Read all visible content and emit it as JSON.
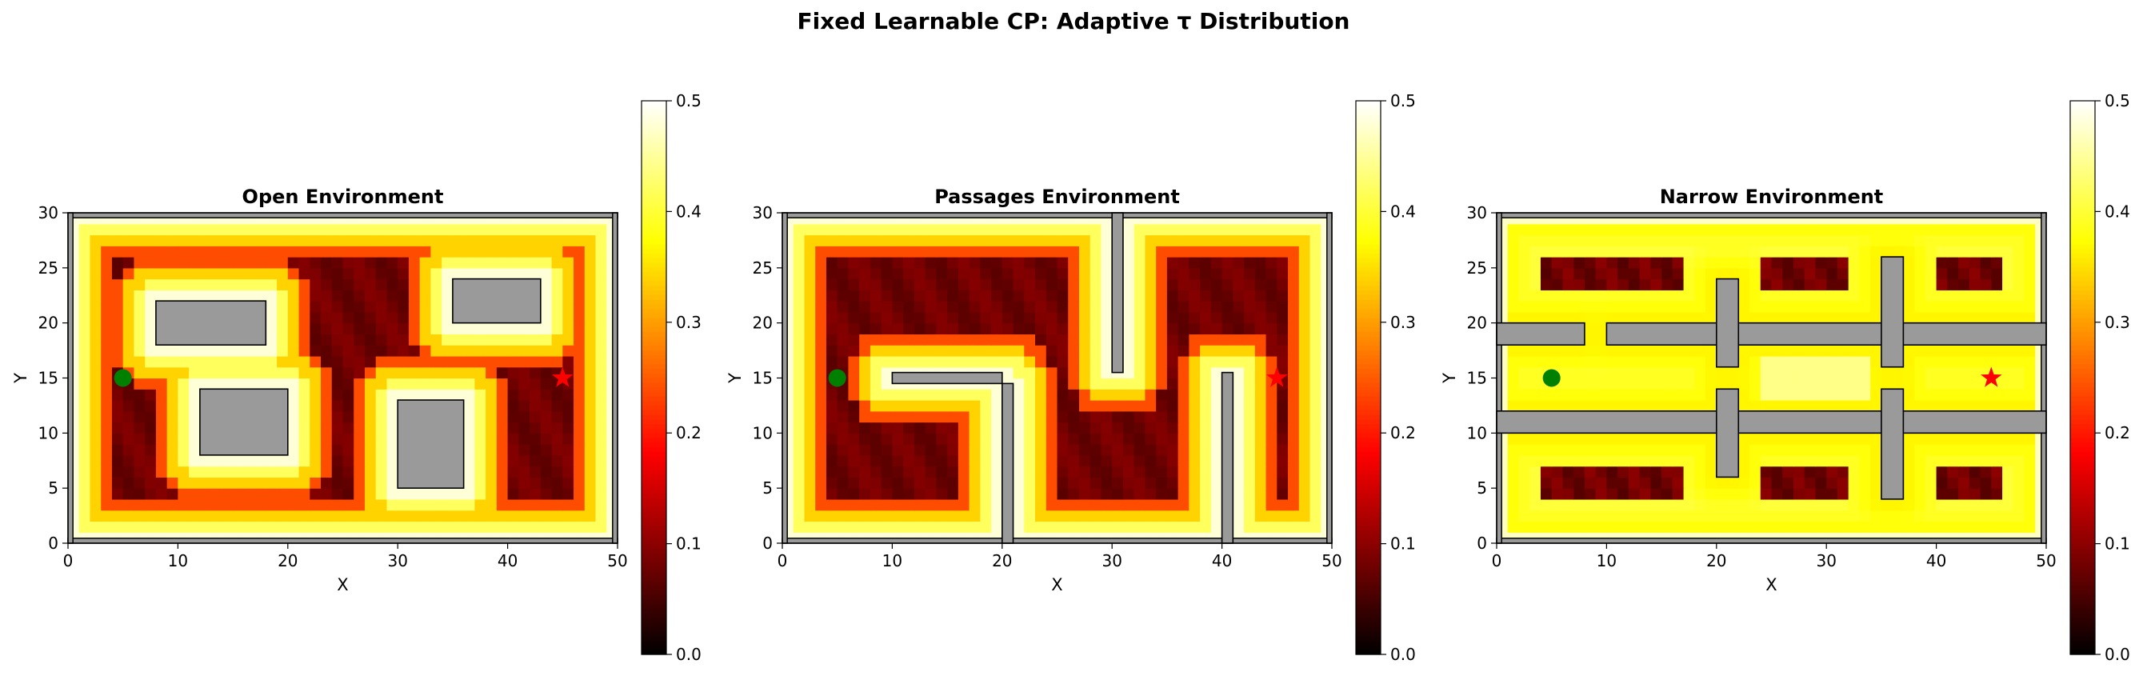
{
  "figure": {
    "suptitle": "Fixed Learnable CP: Adaptive τ Distribution"
  },
  "chart_data": [
    {
      "type": "heatmap",
      "title": "Open Environment",
      "xlabel": "X",
      "ylabel": "Y",
      "xlim": [
        0,
        50
      ],
      "ylim": [
        0,
        30
      ],
      "xticks": [
        0,
        10,
        20,
        30,
        40,
        50
      ],
      "yticks": [
        0,
        5,
        10,
        15,
        20,
        25,
        30
      ],
      "colormap": "hot",
      "colorbar": {
        "range": [
          0.0,
          0.5
        ],
        "ticks": [
          "0.0",
          "0.1",
          "0.2",
          "0.3",
          "0.4",
          "0.5"
        ]
      },
      "value_range": [
        0.0,
        0.5
      ],
      "cell_size": 1,
      "start": {
        "x": 5,
        "y": 15,
        "color": "#008000",
        "marker": "circle"
      },
      "goal": {
        "x": 45,
        "y": 15,
        "color": "#ff0000",
        "marker": "star"
      },
      "obstacles": [
        {
          "x": 8,
          "y": 18,
          "w": 10,
          "h": 4
        },
        {
          "x": 12,
          "y": 8,
          "w": 8,
          "h": 6
        },
        {
          "x": 30,
          "y": 5,
          "w": 6,
          "h": 8
        },
        {
          "x": 35,
          "y": 20,
          "w": 8,
          "h": 4
        }
      ],
      "walls": true,
      "pattern": "obstacle-distance"
    },
    {
      "type": "heatmap",
      "title": "Passages Environment",
      "xlabel": "X",
      "ylabel": "Y",
      "xlim": [
        0,
        50
      ],
      "ylim": [
        0,
        30
      ],
      "xticks": [
        0,
        10,
        20,
        30,
        40,
        50
      ],
      "yticks": [
        0,
        5,
        10,
        15,
        20,
        25,
        30
      ],
      "colormap": "hot",
      "colorbar": {
        "range": [
          0.0,
          0.5
        ],
        "ticks": [
          "0.0",
          "0.1",
          "0.2",
          "0.3",
          "0.4",
          "0.5"
        ]
      },
      "value_range": [
        0.0,
        0.5
      ],
      "cell_size": 1,
      "start": {
        "x": 5,
        "y": 15,
        "color": "#008000",
        "marker": "circle"
      },
      "goal": {
        "x": 45,
        "y": 15,
        "color": "#ff0000",
        "marker": "star"
      },
      "obstacles": [
        {
          "x": 10,
          "y": 14.5,
          "w": 10,
          "h": 1
        },
        {
          "x": 20,
          "y": 0,
          "w": 1,
          "h": 14.5
        },
        {
          "x": 30,
          "y": 15.5,
          "w": 1,
          "h": 14.5
        },
        {
          "x": 40,
          "y": 0,
          "w": 1,
          "h": 15.5
        }
      ],
      "walls": true,
      "pattern": "obstacle-distance"
    },
    {
      "type": "heatmap",
      "title": "Narrow Environment",
      "xlabel": "X",
      "ylabel": "Y",
      "xlim": [
        0,
        50
      ],
      "ylim": [
        0,
        30
      ],
      "xticks": [
        0,
        10,
        20,
        30,
        40,
        50
      ],
      "yticks": [
        0,
        5,
        10,
        15,
        20,
        25,
        30
      ],
      "colormap": "hot",
      "colorbar": {
        "range": [
          0.0,
          0.5
        ],
        "ticks": [
          "0.0",
          "0.1",
          "0.2",
          "0.3",
          "0.4",
          "0.5"
        ]
      },
      "value_range": [
        0.0,
        0.5
      ],
      "cell_size": 1,
      "start": {
        "x": 5,
        "y": 15,
        "color": "#008000",
        "marker": "circle"
      },
      "goal": {
        "x": 45,
        "y": 15,
        "color": "#ff0000",
        "marker": "star"
      },
      "obstacles": [
        {
          "x": 0,
          "y": 18,
          "w": 8,
          "h": 2
        },
        {
          "x": 10,
          "y": 18,
          "w": 40,
          "h": 2
        },
        {
          "x": 0,
          "y": 10,
          "w": 50,
          "h": 2
        },
        {
          "x": 20,
          "y": 16,
          "w": 2,
          "h": 8
        },
        {
          "x": 20,
          "y": 6,
          "w": 2,
          "h": 8
        },
        {
          "x": 35,
          "y": 16,
          "w": 2,
          "h": 10
        },
        {
          "x": 35,
          "y": 4,
          "w": 2,
          "h": 10
        }
      ],
      "dark_regions": [
        {
          "x": 4,
          "y": 23,
          "w": 13,
          "h": 3
        },
        {
          "x": 24,
          "y": 23,
          "w": 8,
          "h": 3
        },
        {
          "x": 40,
          "y": 23,
          "w": 6,
          "h": 3
        },
        {
          "x": 4,
          "y": 4,
          "w": 13,
          "h": 3
        },
        {
          "x": 24,
          "y": 4,
          "w": 8,
          "h": 3
        },
        {
          "x": 40,
          "y": 4,
          "w": 6,
          "h": 3
        }
      ],
      "walls": true,
      "pattern": "corridor-bright"
    }
  ]
}
